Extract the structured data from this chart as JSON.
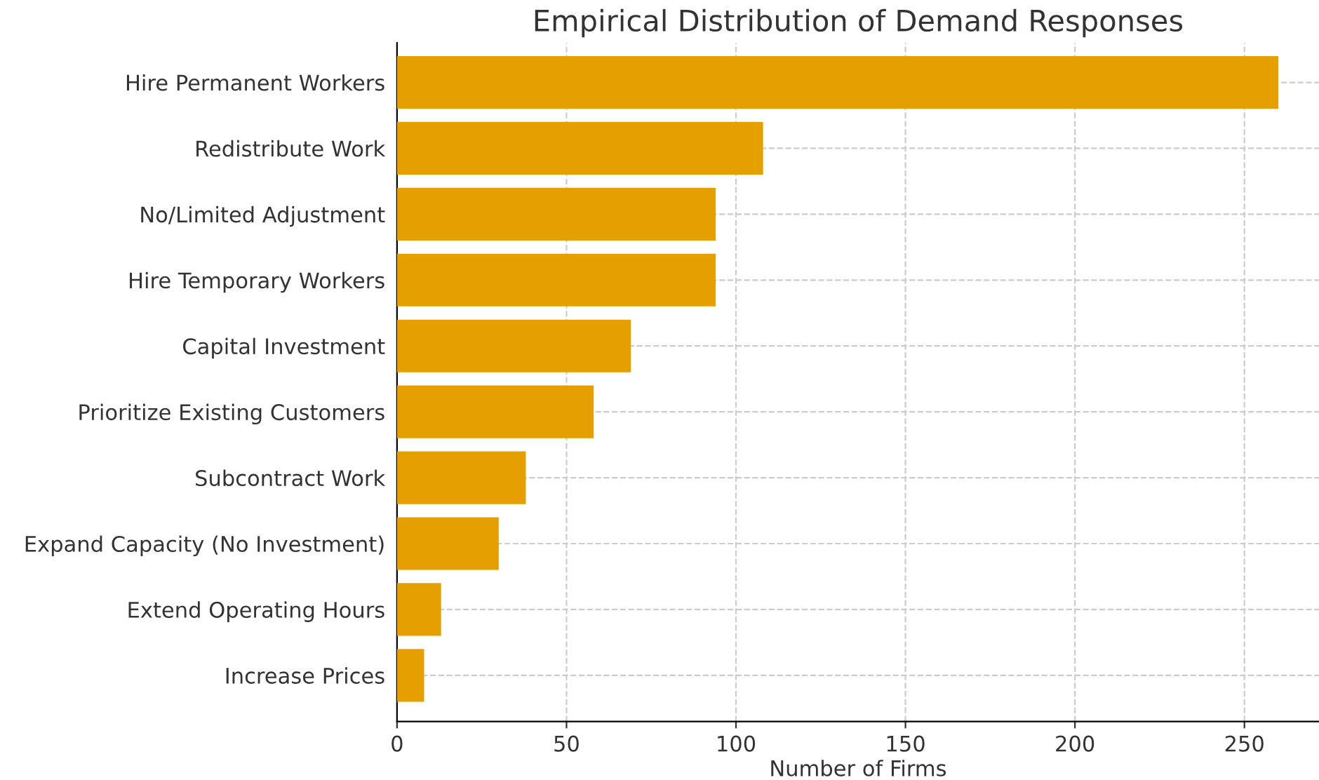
{
  "chart_data": {
    "type": "bar",
    "orientation": "horizontal",
    "title": "Empirical Distribution of Demand Responses",
    "xlabel": "Number of Firms",
    "categories": [
      "Hire Permanent Workers",
      "Redistribute Work",
      "No/Limited Adjustment",
      "Hire Temporary Workers",
      "Capital Investment",
      "Prioritize Existing Customers",
      "Subcontract Work",
      "Expand Capacity (No Investment)",
      "Extend Operating Hours",
      "Increase Prices"
    ],
    "values": [
      260,
      108,
      94,
      94,
      69,
      58,
      38,
      30,
      13,
      8
    ],
    "color": "#e5a000",
    "xlim": [
      0,
      272
    ],
    "xticks": [
      0,
      50,
      100,
      150,
      200,
      250
    ],
    "grid": true
  }
}
